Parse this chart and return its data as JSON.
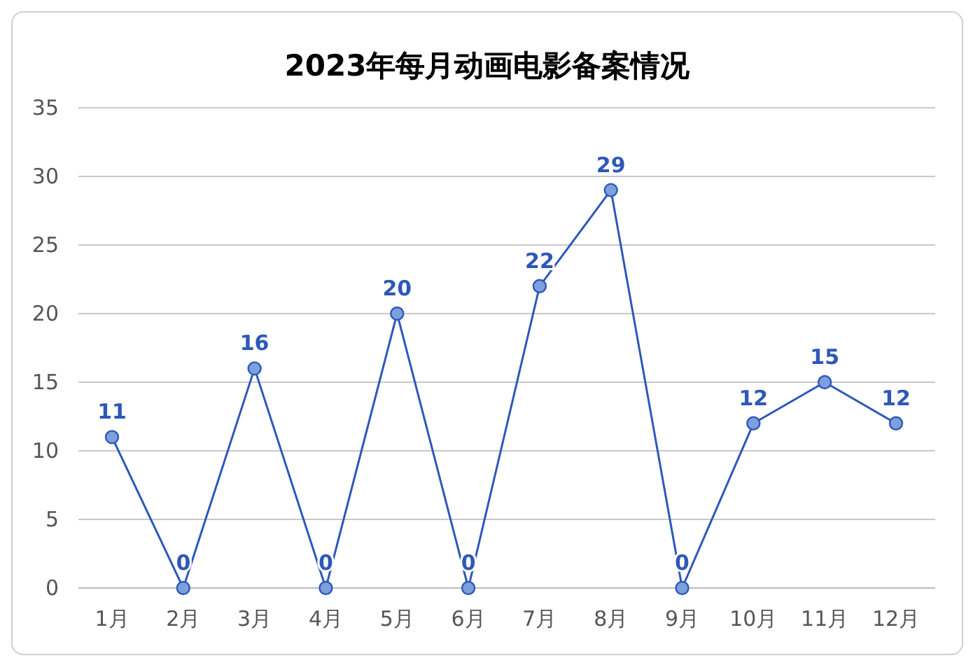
{
  "chart_data": {
    "type": "line",
    "title": "2023年每月动画电影备案情况",
    "categories": [
      "1月",
      "2月",
      "3月",
      "4月",
      "5月",
      "6月",
      "7月",
      "8月",
      "9月",
      "10月",
      "11月",
      "12月"
    ],
    "series": [
      {
        "color": "#2e58b8",
        "values": [
          11,
          0,
          16,
          0,
          20,
          0,
          22,
          29,
          0,
          12,
          15,
          12
        ]
      }
    ],
    "ylim": [
      0,
      35
    ],
    "yticks": [
      0,
      5,
      10,
      15,
      20,
      25,
      30,
      35
    ],
    "grid": "y",
    "marker": "circle",
    "data_labels": true
  }
}
